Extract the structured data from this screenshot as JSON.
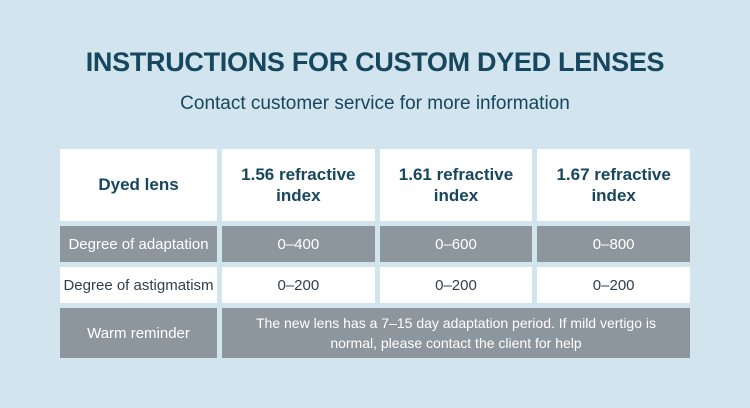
{
  "page": {
    "title": "INSTRUCTIONS FOR CUSTOM DYED LENSES",
    "subtitle": "Contact customer service for more information"
  },
  "colors": {
    "background": "#d2e4ed",
    "title_text": "#17465f",
    "header_cell_bg": "#ffffff",
    "gray_row_bg": "#8d969d",
    "gray_row_text": "#ffffff",
    "white_row_text": "#334049"
  },
  "chart_data": {
    "type": "table",
    "title": "INSTRUCTIONS FOR CUSTOM DYED LENSES",
    "subtitle": "Contact customer service for more information",
    "columns": [
      "Dyed lens",
      "1.56 refractive index",
      "1.61 refractive index",
      "1.67 refractive index"
    ],
    "rows": [
      [
        "Degree of adaptation",
        "0–400",
        "0–600",
        "0–800"
      ],
      [
        "Degree of astigmatism",
        "0–200",
        "0–200",
        "0–200"
      ],
      [
        "Warm reminder",
        "The new lens has a 7–15 day adaptation period. If mild vertigo is normal, please contact the client for help"
      ]
    ]
  }
}
